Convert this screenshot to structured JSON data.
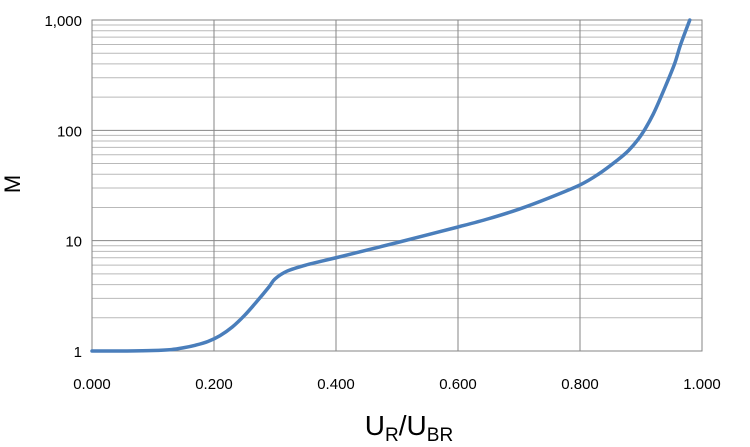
{
  "chart_data": {
    "type": "line",
    "title": "",
    "xlabel": {
      "main": "U",
      "sub1": "R",
      "sep": "/",
      "main2": "U",
      "sub2": "BR"
    },
    "ylabel": "M",
    "xlim": [
      0,
      1
    ],
    "ylim": [
      1,
      1000
    ],
    "yscale": "log",
    "grid": true,
    "x_ticks": [
      "0.000",
      "0.200",
      "0.400",
      "0.600",
      "0.800",
      "1.000"
    ],
    "y_ticks": [
      "1",
      "10",
      "100",
      "1,000"
    ],
    "series": [
      {
        "color": "#4a7ebb",
        "x": [
          0.0,
          0.02,
          0.05,
          0.1,
          0.13,
          0.15,
          0.17,
          0.19,
          0.21,
          0.23,
          0.25,
          0.27,
          0.29,
          0.3,
          0.32,
          0.35,
          0.4,
          0.45,
          0.5,
          0.55,
          0.6,
          0.65,
          0.7,
          0.75,
          0.8,
          0.83,
          0.86,
          0.88,
          0.9,
          0.92,
          0.94,
          0.955,
          0.965,
          0.98
        ],
        "y": [
          1.0,
          1.0,
          1.0,
          1.01,
          1.03,
          1.07,
          1.13,
          1.22,
          1.38,
          1.65,
          2.1,
          2.8,
          3.8,
          4.5,
          5.3,
          6.0,
          7.0,
          8.2,
          9.6,
          11.3,
          13.3,
          15.8,
          19.3,
          24.5,
          32.0,
          40.0,
          53.0,
          66.0,
          90.0,
          140.0,
          250.0,
          400.0,
          600.0,
          1000.0
        ]
      }
    ]
  }
}
